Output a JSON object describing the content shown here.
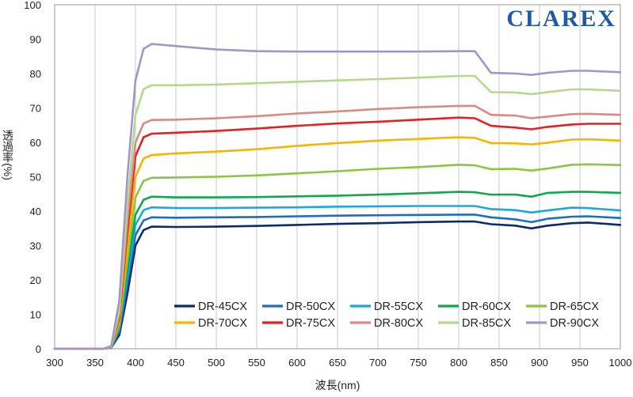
{
  "brand": {
    "logo_text": "CLAREX",
    "color": "#1f5aa6"
  },
  "chart_data": {
    "type": "line",
    "title": "",
    "xlabel": "波長(nm)",
    "ylabel": "透過率(%)",
    "xlim": [
      300,
      1000
    ],
    "ylim": [
      0,
      100
    ],
    "xticks": [
      300,
      350,
      400,
      450,
      500,
      550,
      600,
      650,
      700,
      750,
      800,
      850,
      900,
      950,
      1000
    ],
    "yticks": [
      0,
      10,
      20,
      30,
      40,
      50,
      60,
      70,
      80,
      90,
      100
    ],
    "grid": "vertical",
    "legend_position": "bottom-right",
    "x": [
      300,
      330,
      360,
      370,
      380,
      390,
      400,
      410,
      420,
      450,
      500,
      550,
      600,
      650,
      700,
      750,
      800,
      820,
      840,
      870,
      890,
      910,
      940,
      960,
      1000
    ],
    "series": [
      {
        "name": "DR-45CX",
        "color": "#0b2a6f",
        "values": [
          0,
          0,
          0,
          0.3,
          4,
          16,
          30,
          34.5,
          35.5,
          35.4,
          35.5,
          35.7,
          36,
          36.3,
          36.5,
          36.8,
          37,
          37,
          36.2,
          35.8,
          35,
          35.8,
          36.5,
          36.7,
          36
        ]
      },
      {
        "name": "DR-50CX",
        "color": "#1a6fc0",
        "values": [
          0,
          0,
          0,
          0.3,
          5,
          19,
          33,
          37.3,
          38.2,
          38.1,
          38.2,
          38.3,
          38.5,
          38.7,
          38.8,
          38.9,
          39,
          39,
          38.2,
          37.6,
          36.8,
          37.8,
          38.4,
          38.5,
          38
        ]
      },
      {
        "name": "DR-55CX",
        "color": "#1ba8e0",
        "values": [
          0,
          0,
          0,
          0.4,
          6,
          21,
          36,
          40.3,
          41.1,
          40.9,
          40.9,
          41,
          41.1,
          41.3,
          41.4,
          41.5,
          41.5,
          41.5,
          40.6,
          40.3,
          39.6,
          40.2,
          41,
          40.9,
          40.2
        ]
      },
      {
        "name": "DR-60CX",
        "color": "#0fa84a",
        "values": [
          0,
          0,
          0,
          0.4,
          6.5,
          23,
          39,
          43.3,
          44.2,
          44,
          44,
          44.1,
          44.3,
          44.5,
          44.8,
          45.2,
          45.6,
          45.5,
          44.8,
          44.8,
          44.2,
          45.3,
          45.6,
          45.6,
          45.3
        ]
      },
      {
        "name": "DR-65CX",
        "color": "#8cc63f",
        "values": [
          0,
          0,
          0,
          0.5,
          7,
          26,
          44,
          48.8,
          49.7,
          49.8,
          50,
          50.4,
          51,
          51.6,
          52.3,
          52.8,
          53.5,
          53.3,
          52.2,
          52.3,
          51.8,
          52.4,
          53.5,
          53.6,
          53.4
        ]
      },
      {
        "name": "DR-70CX",
        "color": "#f7b500",
        "values": [
          0,
          0,
          0,
          0.5,
          8,
          30,
          50,
          55.3,
          56.3,
          56.8,
          57.3,
          58,
          59,
          59.8,
          60.5,
          61,
          61.5,
          61.3,
          59.8,
          59.7,
          59.4,
          59.9,
          60.8,
          60.9,
          60.5
        ]
      },
      {
        "name": "DR-75CX",
        "color": "#e62020",
        "values": [
          0,
          0,
          0,
          0.6,
          9,
          34,
          56,
          61.5,
          62.5,
          62.8,
          63.3,
          64,
          64.8,
          65.5,
          66,
          66.6,
          67.2,
          67,
          64.8,
          64.3,
          63.8,
          64.5,
          65.2,
          65.4,
          65.4
        ]
      },
      {
        "name": "DR-80CX",
        "color": "#d98a84",
        "values": [
          0,
          0,
          0,
          0.6,
          10,
          37,
          60,
          65.5,
          66.5,
          66.6,
          67,
          67.6,
          68.4,
          69,
          69.7,
          70.2,
          70.6,
          70.6,
          68,
          67.8,
          67,
          67.5,
          68.2,
          68.3,
          68
        ]
      },
      {
        "name": "DR-85CX",
        "color": "#b5d88a",
        "values": [
          0,
          0,
          0,
          0.7,
          11,
          42,
          68,
          75.5,
          76.6,
          76.6,
          76.8,
          77.2,
          77.6,
          78,
          78.4,
          78.8,
          79.3,
          79.3,
          74.6,
          74.5,
          74,
          74.6,
          75.4,
          75.4,
          75
        ]
      },
      {
        "name": "DR-90CX",
        "color": "#a196c8",
        "values": [
          0,
          0,
          0,
          0.8,
          14,
          50,
          78,
          87.2,
          88.6,
          88,
          87,
          86.5,
          86.4,
          86.4,
          86.4,
          86.4,
          86.5,
          86.5,
          80.2,
          80,
          79.6,
          80.2,
          80.8,
          80.8,
          80.4
        ]
      }
    ]
  }
}
